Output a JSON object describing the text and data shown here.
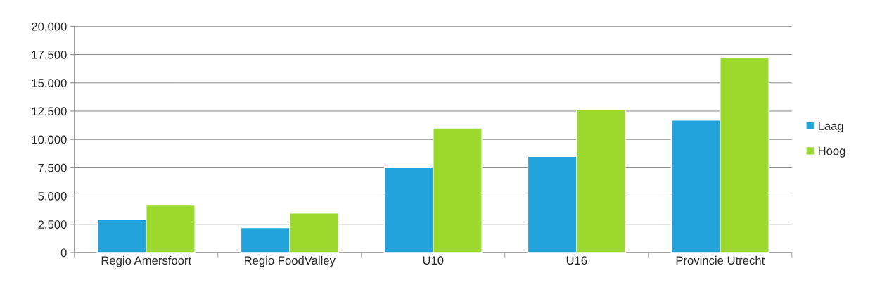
{
  "chart_data": {
    "type": "bar",
    "categories": [
      "Regio Amersfoort",
      "Regio FoodValley",
      "U10",
      "U16",
      "Provincie Utrecht"
    ],
    "series": [
      {
        "name": "Laag",
        "color": "#22a3dc",
        "values": [
          2900,
          2200,
          7500,
          8500,
          11700
        ]
      },
      {
        "name": "Hoog",
        "color": "#9bd92c",
        "values": [
          4200,
          3500,
          11000,
          12600,
          17250
        ]
      }
    ],
    "ylim": [
      0,
      20000
    ],
    "yticks": [
      0,
      {
        "value": 2500,
        "label": "2.500"
      },
      {
        "value": 5000,
        "label": "5.000"
      },
      {
        "value": 7500,
        "label": "7.500"
      },
      {
        "value": 10000,
        "label": "10.000"
      },
      {
        "value": 12500,
        "label": "12.500"
      },
      {
        "value": 15000,
        "label": "15.000"
      },
      {
        "value": 17500,
        "label": "17.500"
      },
      {
        "value": 20000,
        "label": "20.000"
      }
    ],
    "grid": "y",
    "legend": "right"
  }
}
